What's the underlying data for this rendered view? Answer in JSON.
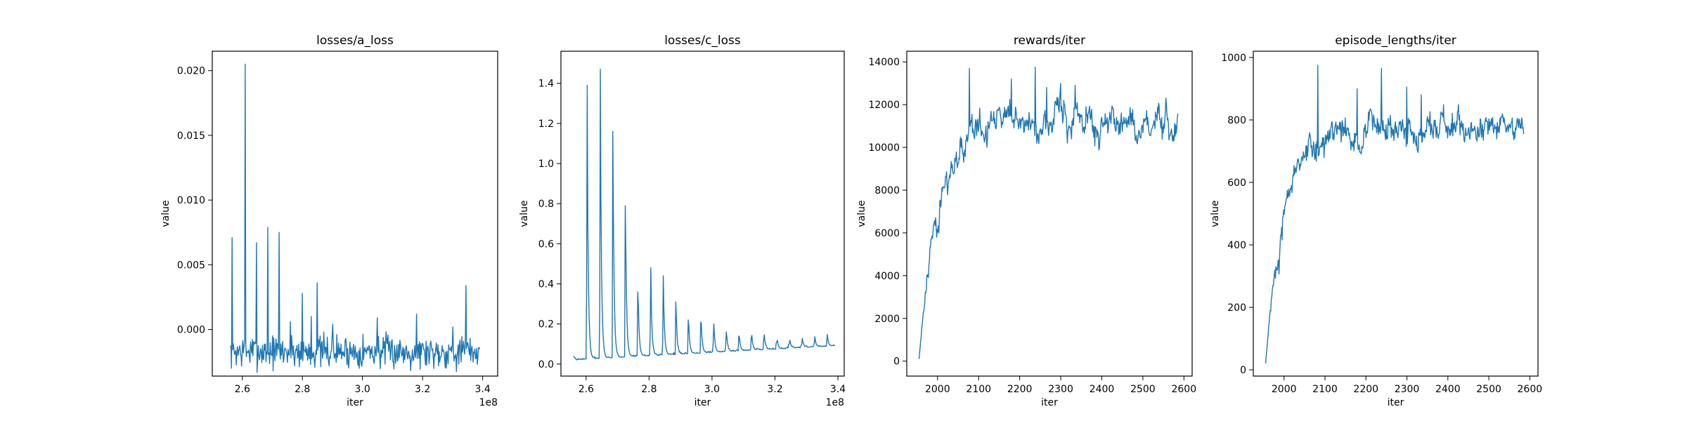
{
  "figure": {
    "line_color": "#1f77b4"
  },
  "chart_data": [
    {
      "type": "line",
      "title": "losses/a_loss",
      "xlabel": "iter",
      "ylabel": "value",
      "x_offset_label": "1e8",
      "xlim": [
        2.5,
        3.45
      ],
      "ylim": [
        -0.0036,
        0.0215
      ],
      "x_ticks": [
        2.6,
        2.8,
        3.0,
        3.2,
        3.4
      ],
      "x_tick_labels": [
        "2.6",
        "2.8",
        "3.0",
        "3.2",
        "3.4"
      ],
      "y_ticks": [
        0.0,
        0.005,
        0.01,
        0.015,
        0.02
      ],
      "y_tick_labels": [
        "0.000",
        "0.005",
        "0.010",
        "0.015",
        "0.020"
      ],
      "grid": false,
      "series": [
        {
          "x_range": [
            2.56,
            3.39
          ],
          "n_points": 420,
          "baseline": -0.0017,
          "noise": 0.0011,
          "drift": 0.0,
          "seed": 7,
          "spikes": [
            [
              2.565,
              0.0071
            ],
            [
              2.61,
              0.0205
            ],
            [
              2.648,
              0.0067
            ],
            [
              2.685,
              0.0079
            ],
            [
              2.722,
              0.0075
            ],
            [
              2.76,
              0.0006
            ],
            [
              2.8,
              0.0028
            ],
            [
              2.83,
              0.001
            ],
            [
              2.85,
              0.0036
            ],
            [
              2.9,
              0.0004
            ],
            [
              3.05,
              0.0009
            ],
            [
              3.18,
              0.0012
            ],
            [
              3.3,
              0.0002
            ],
            [
              3.345,
              0.0034
            ]
          ]
        }
      ]
    },
    {
      "type": "line",
      "title": "losses/c_loss",
      "xlabel": "iter",
      "ylabel": "value",
      "x_offset_label": "1e8",
      "xlim": [
        2.52,
        3.42
      ],
      "ylim": [
        -0.06,
        1.56
      ],
      "x_ticks": [
        2.6,
        2.8,
        3.0,
        3.2,
        3.4
      ],
      "x_tick_labels": [
        "2.6",
        "2.8",
        "3.0",
        "3.2",
        "3.4"
      ],
      "y_ticks": [
        0.0,
        0.2,
        0.4,
        0.6,
        0.8,
        1.0,
        1.2,
        1.4
      ],
      "y_tick_labels": [
        "0.0",
        "0.2",
        "0.4",
        "0.6",
        "0.8",
        "1.0",
        "1.2",
        "1.4"
      ],
      "grid": false,
      "series": [
        {
          "x_range": [
            2.56,
            3.39
          ],
          "n_points": 420,
          "baseline": 0.02,
          "noise": 0.006,
          "drift": 0.07,
          "seed": 11,
          "decay_spikes": [
            [
              2.603,
              1.39
            ],
            [
              2.645,
              1.47
            ],
            [
              2.685,
              1.16
            ],
            [
              2.725,
              0.79
            ],
            [
              2.765,
              0.36
            ],
            [
              2.805,
              0.48
            ],
            [
              2.845,
              0.44
            ],
            [
              2.885,
              0.31
            ],
            [
              2.925,
              0.22
            ],
            [
              2.965,
              0.21
            ],
            [
              3.005,
              0.2
            ],
            [
              3.045,
              0.16
            ],
            [
              3.085,
              0.14
            ],
            [
              3.125,
              0.13
            ],
            [
              3.165,
              0.12
            ],
            [
              3.205,
              0.11
            ],
            [
              3.245,
              0.1
            ],
            [
              3.285,
              0.1
            ],
            [
              3.325,
              0.1
            ],
            [
              3.365,
              0.1
            ]
          ],
          "start_value": 0.04
        }
      ]
    },
    {
      "type": "line",
      "title": "rewards/iter",
      "xlabel": "iter",
      "ylabel": "value",
      "xlim": [
        1925,
        2620
      ],
      "ylim": [
        -700,
        14500
      ],
      "x_ticks": [
        2000,
        2100,
        2200,
        2300,
        2400,
        2500,
        2600
      ],
      "x_tick_labels": [
        "2000",
        "2100",
        "2200",
        "2300",
        "2400",
        "2500",
        "2600"
      ],
      "y_ticks": [
        0,
        2000,
        4000,
        6000,
        8000,
        10000,
        12000,
        14000
      ],
      "y_tick_labels": [
        "0",
        "2000",
        "4000",
        "6000",
        "8000",
        "10000",
        "12000",
        "14000"
      ],
      "grid": false,
      "series": [
        {
          "x_range": [
            1955,
            2585
          ],
          "n_points": 500,
          "start": 100,
          "plateau": 11200,
          "rate": 0.022,
          "noise": 650,
          "seed": 23,
          "spikes": [
            [
              2078,
              13700
            ],
            [
              2180,
              13200
            ],
            [
              2238,
              13750
            ],
            [
              2300,
              13000
            ],
            [
              2335,
              12900
            ],
            [
              2265,
              12800
            ]
          ]
        }
      ]
    },
    {
      "type": "line",
      "title": "episode_lengths/iter",
      "xlabel": "iter",
      "ylabel": "value",
      "xlim": [
        1925,
        2620
      ],
      "ylim": [
        -20,
        1020
      ],
      "x_ticks": [
        2000,
        2100,
        2200,
        2300,
        2400,
        2500,
        2600
      ],
      "x_tick_labels": [
        "2000",
        "2100",
        "2200",
        "2300",
        "2400",
        "2500",
        "2600"
      ],
      "y_ticks": [
        0,
        200,
        400,
        600,
        800,
        1000
      ],
      "y_tick_labels": [
        "0",
        "200",
        "400",
        "600",
        "800",
        "1000"
      ],
      "grid": false,
      "series": [
        {
          "x_range": [
            1955,
            2585
          ],
          "n_points": 500,
          "start": 20,
          "plateau": 775,
          "rate": 0.022,
          "noise": 42,
          "seed": 31,
          "spikes": [
            [
              2082,
              975
            ],
            [
              2238,
              965
            ],
            [
              2178,
              900
            ],
            [
              2300,
              905
            ],
            [
              2335,
              880
            ]
          ]
        }
      ]
    }
  ]
}
